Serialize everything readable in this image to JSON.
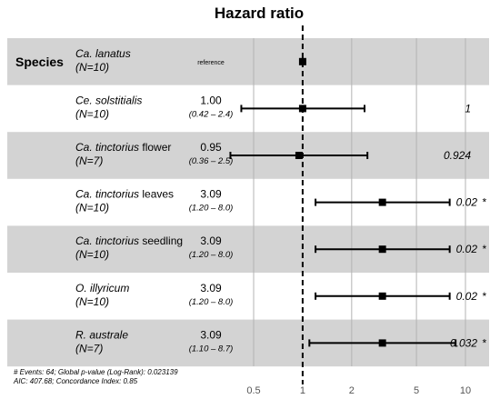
{
  "chart_data": {
    "type": "forest",
    "title": "Hazard ratio",
    "column_header": "Species",
    "x_scale": "log",
    "xlim": [
      0.35,
      11
    ],
    "x_ticks": [
      0.5,
      1,
      2,
      5,
      10
    ],
    "x_tick_labels": [
      "0.5",
      "1",
      "2",
      "5",
      "10"
    ],
    "reference_line": 1,
    "rows": [
      {
        "species": "Ca. lanatus",
        "qualifier": "",
        "n": "(N=10)",
        "shaded": true,
        "hr_label": "",
        "ci_label": "",
        "reference_label": "reference",
        "hr": 1,
        "lo": null,
        "hi": null,
        "p": "",
        "sig": ""
      },
      {
        "species": "Ce. solstitialis",
        "qualifier": "",
        "n": "(N=10)",
        "shaded": false,
        "hr_label": "1.00",
        "ci_label": "(0.42 – 2.4)",
        "reference_label": "",
        "hr": 1.0,
        "lo": 0.42,
        "hi": 2.4,
        "p": "1",
        "sig": ""
      },
      {
        "species": "Ca. tinctorius",
        "qualifier": " flower",
        "n": "(N=7)",
        "shaded": true,
        "hr_label": "0.95",
        "ci_label": "(0.36 – 2.5)",
        "reference_label": "",
        "hr": 0.95,
        "lo": 0.36,
        "hi": 2.5,
        "p": "0.924",
        "sig": ""
      },
      {
        "species": "Ca. tinctorius",
        "qualifier": " leaves",
        "n": "(N=10)",
        "shaded": false,
        "hr_label": "3.09",
        "ci_label": "(1.20 – 8.0)",
        "reference_label": "",
        "hr": 3.09,
        "lo": 1.2,
        "hi": 8.0,
        "p": "0.02",
        "sig": "*"
      },
      {
        "species": "Ca. tinctorius",
        "qualifier": " seedling",
        "n": "(N=10)",
        "shaded": true,
        "hr_label": "3.09",
        "ci_label": "(1.20 – 8.0)",
        "reference_label": "",
        "hr": 3.09,
        "lo": 1.2,
        "hi": 8.0,
        "p": "0.02",
        "sig": "*"
      },
      {
        "species": "O. illyricum",
        "qualifier": "",
        "n": "(N=10)",
        "shaded": false,
        "hr_label": "3.09",
        "ci_label": "(1.20 – 8.0)",
        "reference_label": "",
        "hr": 3.09,
        "lo": 1.2,
        "hi": 8.0,
        "p": "0.02",
        "sig": "*"
      },
      {
        "species": "R. australe",
        "qualifier": "",
        "n": "(N=7)",
        "shaded": true,
        "hr_label": "3.09",
        "ci_label": "(1.10 – 8.7)",
        "reference_label": "",
        "hr": 3.09,
        "lo": 1.1,
        "hi": 8.7,
        "p": "0.032",
        "sig": "*"
      }
    ],
    "footer": [
      "# Events: 64; Global p-value (Log-Rank): 0.023139",
      "AIC: 407.68; Concordance Index: 0.85"
    ],
    "colors": {
      "band": "#d3d3d3",
      "ink": "#000000",
      "grid": "#b3b3b3",
      "tick": "#555555"
    }
  }
}
